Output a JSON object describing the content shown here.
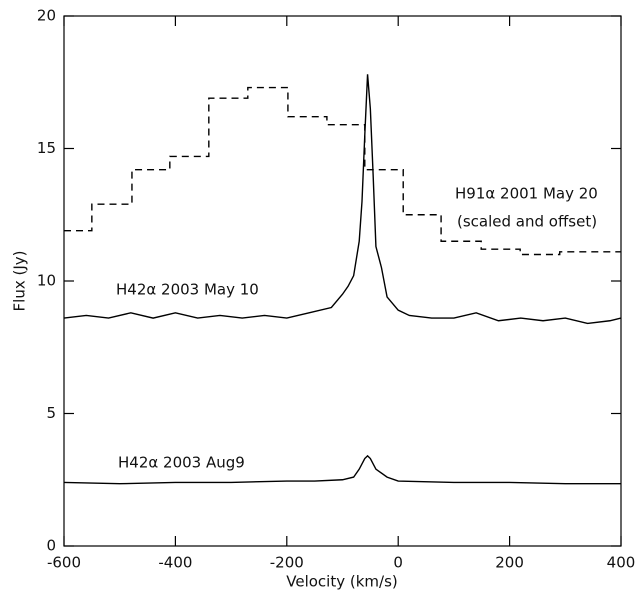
{
  "chart_data": {
    "type": "line",
    "xlabel": "Velocity (km/s)",
    "ylabel": "Flux (Jy)",
    "xlim": [
      -600,
      400
    ],
    "xticks": [
      -600,
      -400,
      -200,
      0,
      200,
      400
    ],
    "ylim": [
      0,
      20
    ],
    "yticks": [
      0,
      5,
      10,
      15,
      20
    ],
    "grid": false,
    "series": [
      {
        "name": "H91α 2001 May 20",
        "color": "#000000",
        "dashed": true,
        "step": true,
        "x": [
          -600,
          -550,
          -478,
          -410,
          -340,
          -270,
          -198,
          -128,
          -60,
          9,
          77,
          149,
          219,
          290,
          400
        ],
        "values": [
          11.9,
          12.9,
          14.2,
          14.7,
          16.9,
          17.3,
          16.2,
          15.9,
          14.2,
          12.5,
          11.5,
          11.2,
          11.0,
          11.1,
          11.1
        ]
      },
      {
        "name": "H42α 2003 May 10",
        "color": "#000000",
        "dashed": false,
        "step": false,
        "x": [
          -600,
          -560,
          -520,
          -480,
          -440,
          -400,
          -360,
          -320,
          -280,
          -240,
          -200,
          -160,
          -120,
          -100,
          -90,
          -80,
          -70,
          -65,
          -60,
          -55,
          -50,
          -45,
          -40,
          -30,
          -20,
          0,
          20,
          60,
          100,
          140,
          180,
          220,
          260,
          300,
          340,
          380,
          400
        ],
        "values": [
          8.6,
          8.7,
          8.6,
          8.8,
          8.6,
          8.8,
          8.6,
          8.7,
          8.6,
          8.7,
          8.6,
          8.8,
          9.0,
          9.5,
          9.8,
          10.2,
          11.5,
          13.0,
          15.5,
          17.8,
          16.5,
          14.0,
          11.3,
          10.5,
          9.4,
          8.9,
          8.7,
          8.6,
          8.6,
          8.8,
          8.5,
          8.6,
          8.5,
          8.6,
          8.4,
          8.5,
          8.6
        ]
      },
      {
        "name": "H42α 2003 Aug9",
        "color": "#000000",
        "dashed": false,
        "step": false,
        "x": [
          -600,
          -500,
          -400,
          -300,
          -200,
          -150,
          -100,
          -80,
          -70,
          -60,
          -55,
          -50,
          -40,
          -20,
          0,
          100,
          200,
          300,
          400
        ],
        "values": [
          2.4,
          2.35,
          2.4,
          2.4,
          2.45,
          2.45,
          2.5,
          2.6,
          2.9,
          3.3,
          3.4,
          3.3,
          2.9,
          2.6,
          2.45,
          2.4,
          2.4,
          2.35,
          2.35
        ]
      }
    ],
    "annotations": [
      "(scaled and offset)"
    ]
  }
}
